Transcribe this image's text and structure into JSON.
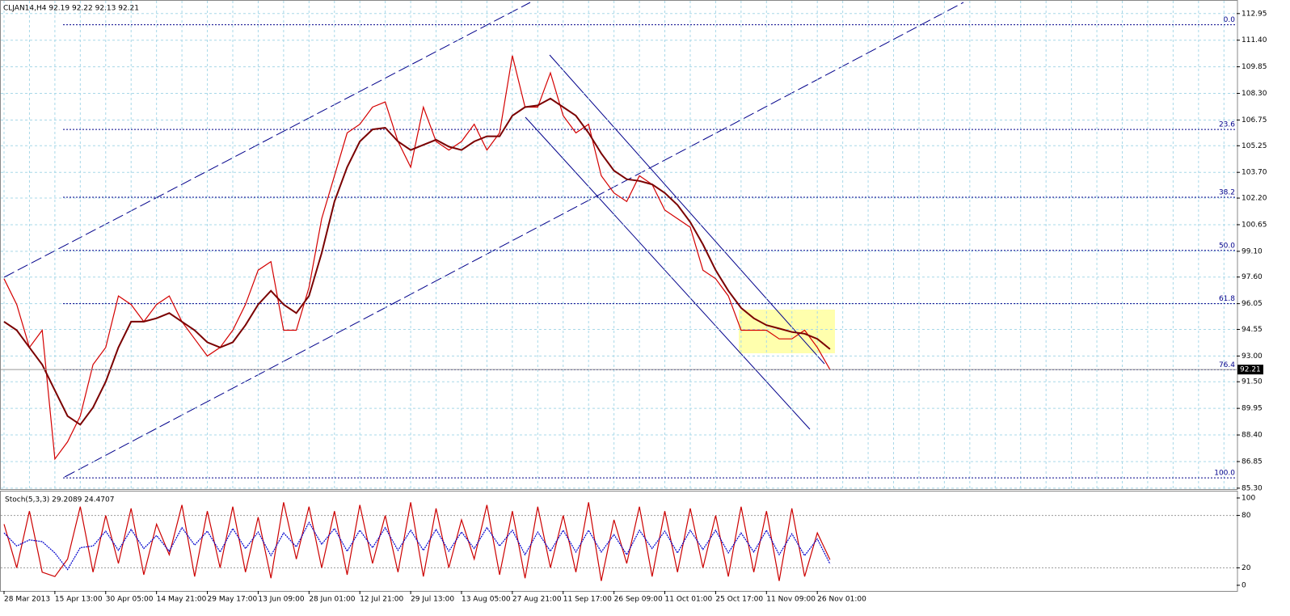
{
  "chart_data": [
    {
      "type": "line",
      "title": "CLJAN14,H4  92.19 92.22 92.13 92.21",
      "xlim": [
        0,
        97
      ],
      "ylim": [
        85.2,
        113.6
      ],
      "yticks": [
        112.95,
        {
          "value": 111.4,
          "label": "111.40"
        },
        109.85,
        {
          "value": 108.3,
          "label": "108.30"
        },
        106.75,
        105.25,
        {
          "value": 103.7,
          "label": "103.70"
        },
        {
          "value": 102.2,
          "label": "102.20"
        },
        100.65,
        {
          "value": 99.1,
          "label": "99.10"
        },
        {
          "value": 97.6,
          "label": "97.60"
        },
        96.05,
        94.55,
        {
          "value": 93.0,
          "label": "93.00"
        },
        {
          "value": 91.5,
          "label": "91.50"
        },
        89.95,
        {
          "value": 88.4,
          "label": "88.40"
        },
        86.85,
        {
          "value": 85.3,
          "label": "85.30"
        }
      ],
      "grid": true,
      "series": [
        {
          "color": "#d40000",
          "values": [
            97.5,
            96,
            93.5,
            94.5,
            87,
            88,
            89.5,
            92.5,
            93.5,
            96.5,
            96,
            95,
            96,
            96.5,
            95,
            94,
            93,
            93.5,
            94.5,
            96,
            98,
            98.5,
            94.5,
            94.5,
            97,
            101,
            103.5,
            106,
            106.5,
            107.5,
            107.8,
            105.5,
            104,
            107.5,
            105.5,
            105,
            105.5,
            106.5,
            105,
            106,
            110.5,
            107.5,
            107.5,
            109.5,
            107,
            106,
            106.5,
            103.5,
            102.5,
            102,
            103.5,
            103,
            101.5,
            101,
            100.5,
            98,
            97.5,
            96.5,
            94.5,
            94.5,
            94.5,
            94,
            94,
            94.5,
            93.5,
            92.21
          ]
        },
        {
          "color": "#7a0000",
          "values": [
            95,
            94.5,
            93.5,
            92.5,
            91,
            89.5,
            89,
            90,
            91.5,
            93.5,
            95,
            95,
            95.2,
            95.5,
            95,
            94.5,
            93.8,
            93.5,
            93.8,
            94.8,
            96,
            96.8,
            96,
            95.5,
            96.5,
            99,
            102,
            104,
            105.5,
            106.2,
            106.3,
            105.5,
            105,
            105.3,
            105.6,
            105.2,
            105,
            105.5,
            105.8,
            105.8,
            107,
            107.5,
            107.6,
            108,
            107.5,
            107,
            106,
            104.8,
            103.8,
            103.3,
            103.2,
            103,
            102.5,
            101.8,
            100.8,
            99.5,
            98,
            96.8,
            95.8,
            95.2,
            94.8,
            94.6,
            94.4,
            94.3,
            94,
            93.4
          ]
        }
      ],
      "fib_levels": [
        {
          "value": 112.3,
          "label": "0.0"
        },
        {
          "value": 106.2,
          "label": "23.6"
        },
        {
          "value": 102.25,
          "label": "38.2"
        },
        {
          "value": 99.15,
          "label": "50.0"
        },
        {
          "value": 96.05,
          "label": "61.8"
        },
        {
          "value": 92.2,
          "label": "76.4"
        },
        {
          "value": 85.9,
          "label": "100.0"
        }
      ],
      "fib_color": "#00008b",
      "current_price": 92.21
    },
    {
      "type": "line",
      "title": "Stoch(5,3,3) 29.2089 24.4707",
      "xlim": [
        0,
        97
      ],
      "ylim": [
        -6.5,
        107.4
      ],
      "yticks": [
        0,
        20,
        80,
        100
      ],
      "levels": [
        20,
        80
      ],
      "categories": [
        "28 Mar 2013",
        null,
        null,
        null,
        "15 Apr 13:00",
        null,
        null,
        null,
        "30 Apr 05:00",
        null,
        null,
        null,
        "14 May 21:00",
        null,
        null,
        null,
        "29 May 17:00",
        null,
        null,
        null,
        "13 Jun 09:00",
        null,
        null,
        null,
        "28 Jun 01:00",
        null,
        null,
        null,
        "12 Jul 21:00",
        null,
        null,
        null,
        "29 Jul 13:00",
        null,
        null,
        null,
        "13 Aug 05:00",
        null,
        null,
        null,
        "27 Aug 21:00",
        null,
        null,
        null,
        "11 Sep 17:00",
        null,
        null,
        null,
        "26 Sep 09:00",
        null,
        null,
        null,
        "11 Oct 01:00",
        null,
        null,
        null,
        "25 Oct 17:00",
        null,
        null,
        null,
        "11 Nov 09:00",
        null,
        null,
        null,
        "26 Nov 01:00",
        null
      ],
      "series": [
        {
          "color": "#cc0000",
          "values": [
            70,
            20,
            85,
            15,
            10,
            30,
            90,
            15,
            80,
            25,
            88,
            12,
            70,
            35,
            92,
            10,
            85,
            20,
            90,
            15,
            78,
            8,
            95,
            30,
            90,
            20,
            85,
            12,
            92,
            25,
            80,
            15,
            95,
            10,
            88,
            20,
            75,
            30,
            92,
            12,
            85,
            8,
            90,
            20,
            80,
            15,
            95,
            5,
            75,
            25,
            90,
            10,
            85,
            15,
            88,
            20,
            80,
            10,
            90,
            15,
            85,
            5,
            88,
            10,
            60,
            29.2089
          ]
        },
        {
          "color": "#0000cc",
          "values": [
            60,
            45,
            52,
            50,
            37,
            18,
            43,
            45,
            62,
            40,
            64,
            42,
            57,
            39,
            66,
            46,
            62,
            38,
            65,
            42,
            61,
            34,
            60,
            44,
            72,
            47,
            65,
            39,
            63,
            43,
            66,
            40,
            63,
            40,
            64,
            39,
            61,
            42,
            66,
            45,
            63,
            35,
            61,
            39,
            63,
            38,
            63,
            38,
            58,
            35,
            63,
            42,
            62,
            37,
            63,
            41,
            63,
            37,
            60,
            38,
            63,
            35,
            59,
            34,
            53,
            24.4707
          ]
        }
      ]
    }
  ]
}
